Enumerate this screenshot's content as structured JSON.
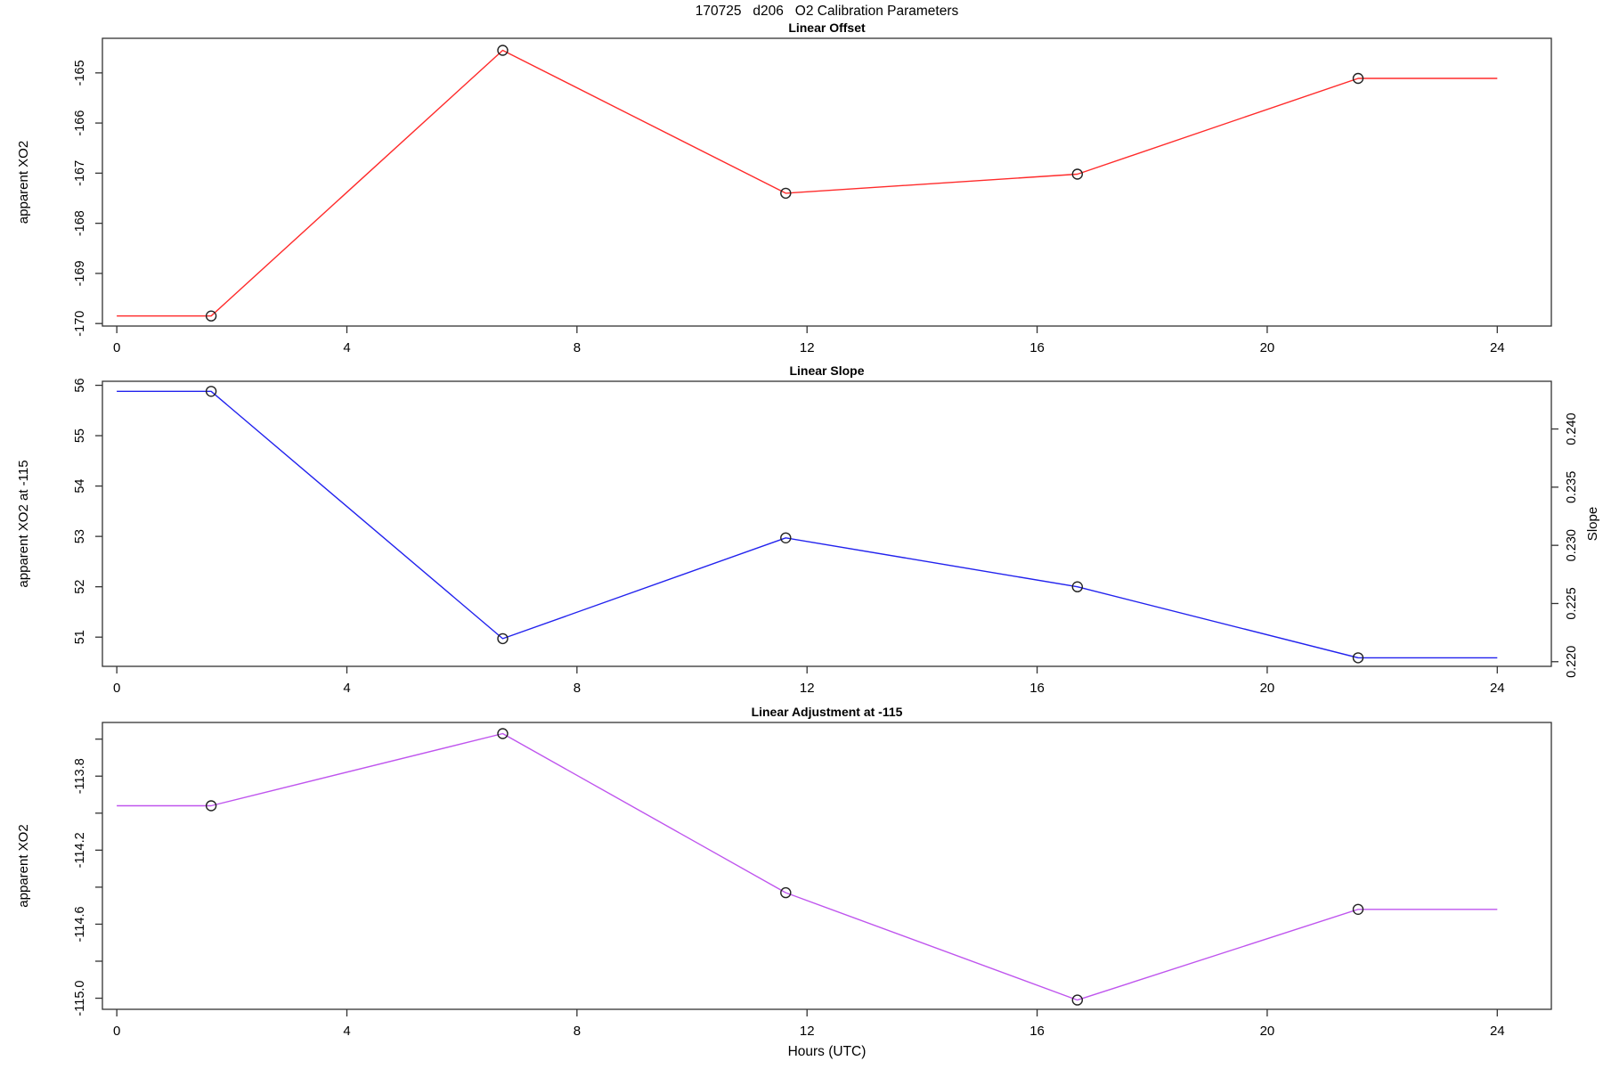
{
  "figure": {
    "title": "170725   d206   O2 Calibration Parameters",
    "x_axis_title": "Hours (UTC)"
  },
  "chart_data": [
    {
      "type": "line",
      "title": "Linear Offset",
      "ylabel": "apparent XO2",
      "color": "#ff2b2b",
      "marker": "open-circle",
      "marker_indices": [
        1,
        2,
        3,
        4,
        5
      ],
      "x": [
        0,
        1.64,
        6.71,
        11.63,
        16.7,
        21.58,
        24
      ],
      "y": [
        -169.85,
        -169.85,
        -164.55,
        -167.4,
        -167.02,
        -165.11,
        -165.11
      ],
      "xlim": [
        -0.25,
        24.94
      ],
      "ylim": [
        -170.05,
        -164.31
      ],
      "xticks": [
        0,
        4,
        8,
        12,
        16,
        20,
        24
      ],
      "yticks": {
        "values": [
          -165,
          -166,
          -167,
          -168,
          -169,
          -170
        ],
        "labels": [
          "-165",
          "-166",
          "-167",
          "-168",
          "-169",
          "-170"
        ]
      },
      "grid": false,
      "legend": "none"
    },
    {
      "type": "line",
      "title": "Linear Slope",
      "ylabel": "apparent XO2 at -115",
      "color": "#2222ee",
      "marker": "open-circle",
      "marker_indices": [
        1,
        2,
        3,
        4,
        5
      ],
      "x": [
        0,
        1.64,
        6.71,
        11.63,
        16.7,
        21.58,
        24
      ],
      "y": [
        55.88,
        55.88,
        50.97,
        52.97,
        52.0,
        50.59,
        50.59
      ],
      "xlim": [
        -0.25,
        24.94
      ],
      "ylim": [
        50.42,
        56.08
      ],
      "xticks": [
        0,
        4,
        8,
        12,
        16,
        20,
        24
      ],
      "yticks": {
        "values": [
          56,
          55,
          54,
          53,
          52,
          51
        ],
        "labels": [
          "56",
          "55",
          "54",
          "53",
          "52",
          "51"
        ]
      },
      "right_axis": {
        "label": "Slope",
        "ylim": [
          0.2196,
          0.2441
        ],
        "values": [
          0.24,
          0.235,
          0.23,
          0.225,
          0.22
        ],
        "labels": [
          "0.240",
          "0.235",
          "0.230",
          "0.225",
          "0.220"
        ]
      },
      "grid": false,
      "legend": "none"
    },
    {
      "type": "line",
      "title": "Linear Adjustment at -115",
      "ylabel": "apparent XO2",
      "color": "#bf55ee",
      "marker": "open-circle",
      "marker_indices": [
        1,
        2,
        3,
        4,
        5
      ],
      "x": [
        0,
        1.64,
        6.71,
        11.63,
        16.7,
        21.58,
        24
      ],
      "y": [
        -113.96,
        -113.96,
        -113.57,
        -114.43,
        -115.01,
        -114.52,
        -114.52
      ],
      "xlim": [
        -0.25,
        24.94
      ],
      "ylim": [
        -115.06,
        -113.51
      ],
      "xticks": [
        0,
        4,
        8,
        12,
        16,
        20,
        24
      ],
      "yticks": {
        "values": [
          -113.6,
          -113.8,
          -114.0,
          -114.2,
          -114.4,
          -114.6,
          -114.8,
          -115.0
        ],
        "labels": [
          "",
          "-113.8",
          "",
          "-114.2",
          "",
          "-114.6",
          "",
          "-115.0"
        ]
      },
      "grid": false,
      "legend": "none"
    }
  ]
}
